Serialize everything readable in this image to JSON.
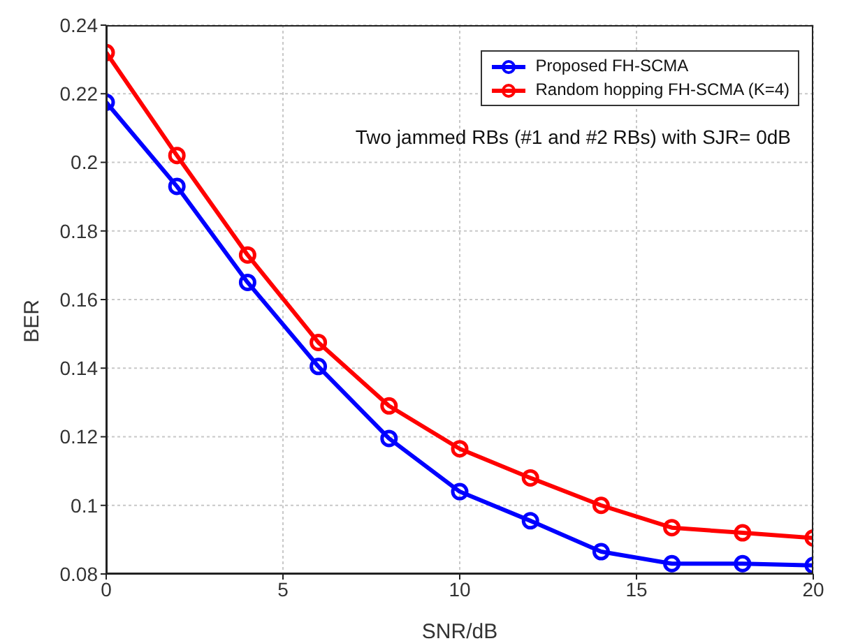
{
  "chart_data": {
    "type": "line",
    "xlabel": "SNR/dB",
    "ylabel": "BER",
    "annotations": [
      "Two jammed RBs (#1 and #2 RBs) with SJR= 0dB"
    ],
    "x": [
      0,
      2,
      4,
      6,
      8,
      10,
      12,
      14,
      16,
      18,
      20
    ],
    "series": [
      {
        "name": "Proposed FH-SCMA",
        "color": "#0000ff",
        "values": [
          0.2175,
          0.193,
          0.165,
          0.1405,
          0.1195,
          0.104,
          0.0955,
          0.0865,
          0.083,
          0.083,
          0.0825
        ]
      },
      {
        "name": "Random hopping FH-SCMA (K=4)",
        "color": "#ff0000",
        "values": [
          0.232,
          0.202,
          0.173,
          0.1475,
          0.129,
          0.1165,
          0.108,
          0.1,
          0.0935,
          0.092,
          0.0905
        ]
      }
    ],
    "xlim": [
      0,
      20
    ],
    "xticks": [
      0,
      5,
      10,
      15,
      20
    ],
    "ylim": [
      0.08,
      0.24
    ],
    "yticks": [
      0.08,
      0.1,
      0.12,
      0.14,
      0.16,
      0.18,
      0.2,
      0.22,
      0.24
    ],
    "grid": true,
    "legend": "top right",
    "marker": "circle",
    "line_style": "solid"
  }
}
